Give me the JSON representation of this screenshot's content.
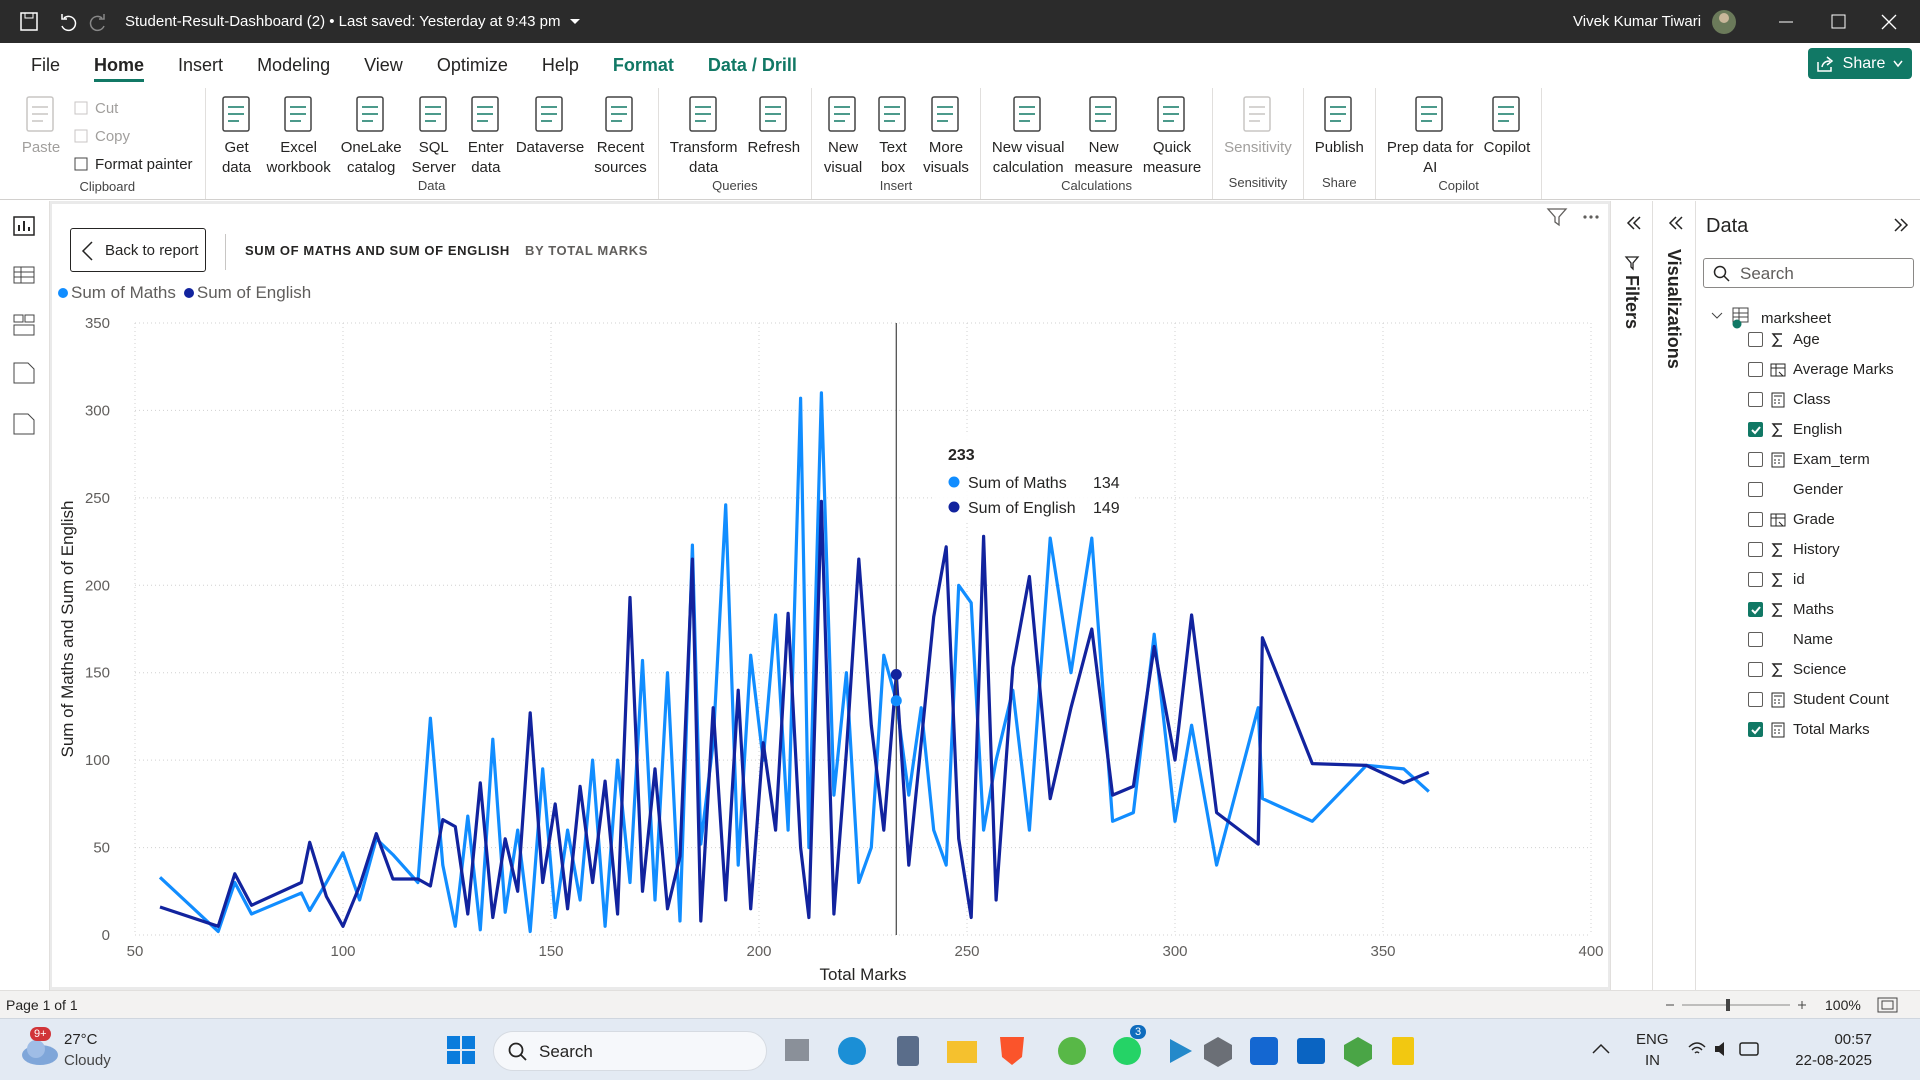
{
  "titlebar": {
    "title": "Student-Result-Dashboard (2) • Last saved: Yesterday at 9:43 pm",
    "user": "Vivek Kumar Tiwari"
  },
  "tabs": [
    {
      "label": "File"
    },
    {
      "label": "Home",
      "active": true
    },
    {
      "label": "Insert"
    },
    {
      "label": "Modeling"
    },
    {
      "label": "View"
    },
    {
      "label": "Optimize"
    },
    {
      "label": "Help"
    },
    {
      "label": "Format",
      "contextual": true
    },
    {
      "label": "Data / Drill",
      "contextual": true
    }
  ],
  "share": "Share",
  "ribbon": [
    {
      "name": "Clipboard",
      "buttons": [
        {
          "label": "Paste",
          "disabled": true
        },
        {
          "label": "Cut",
          "disabled": true,
          "small": true
        },
        {
          "label": "Copy",
          "disabled": true,
          "small": true
        },
        {
          "label": "Format painter",
          "small": true
        }
      ]
    },
    {
      "name": "Data",
      "buttons": [
        {
          "label": "Get\ndata"
        },
        {
          "label": "Excel\nworkbook"
        },
        {
          "label": "OneLake\ncatalog"
        },
        {
          "label": "SQL\nServer"
        },
        {
          "label": "Enter\ndata"
        },
        {
          "label": "Dataverse"
        },
        {
          "label": "Recent\nsources"
        }
      ]
    },
    {
      "name": "Queries",
      "buttons": [
        {
          "label": "Transform\ndata"
        },
        {
          "label": "Refresh"
        }
      ]
    },
    {
      "name": "Insert",
      "buttons": [
        {
          "label": "New\nvisual"
        },
        {
          "label": "Text\nbox"
        },
        {
          "label": "More\nvisuals"
        }
      ]
    },
    {
      "name": "Calculations",
      "buttons": [
        {
          "label": "New visual\ncalculation"
        },
        {
          "label": "New\nmeasure"
        },
        {
          "label": "Quick\nmeasure"
        }
      ]
    },
    {
      "name": "Sensitivity",
      "buttons": [
        {
          "label": "Sensitivity",
          "disabled": true
        }
      ]
    },
    {
      "name": "Share",
      "buttons": [
        {
          "label": "Publish"
        }
      ]
    },
    {
      "name": "Copilot",
      "buttons": [
        {
          "label": "Prep data for\nAI"
        },
        {
          "label": "Copilot"
        }
      ]
    }
  ],
  "visual": {
    "back": "Back to report",
    "heading": "SUM OF MATHS AND SUM OF ENGLISH",
    "subheading": "BY TOTAL MARKS"
  },
  "panes": {
    "filters": "Filters",
    "visualizations": "Visualizations",
    "data": {
      "title": "Data",
      "search": "Search",
      "table": "marksheet",
      "fields": [
        {
          "name": "Age",
          "kind": "sum",
          "checked": false
        },
        {
          "name": "Average Marks",
          "kind": "column-calc",
          "checked": false
        },
        {
          "name": "Class",
          "kind": "calc",
          "checked": false
        },
        {
          "name": "English",
          "kind": "sum",
          "checked": true
        },
        {
          "name": "Exam_term",
          "kind": "calc",
          "checked": false
        },
        {
          "name": "Gender",
          "kind": "text",
          "checked": false
        },
        {
          "name": "Grade",
          "kind": "column-calc",
          "checked": false
        },
        {
          "name": "History",
          "kind": "sum",
          "checked": false
        },
        {
          "name": "id",
          "kind": "sum",
          "checked": false
        },
        {
          "name": "Maths",
          "kind": "sum",
          "checked": true
        },
        {
          "name": "Name",
          "kind": "text",
          "checked": false
        },
        {
          "name": "Science",
          "kind": "sum",
          "checked": false
        },
        {
          "name": "Student Count",
          "kind": "calc",
          "checked": false
        },
        {
          "name": "Total Marks",
          "kind": "calc",
          "checked": true
        }
      ]
    }
  },
  "status": {
    "page": "Page 1 of 1",
    "zoom": "100%"
  },
  "taskbar": {
    "temp": "27°C",
    "condition": "Cloudy",
    "weather_badge": "9+",
    "search": "Search",
    "app_badge": "3",
    "lang": "ENG",
    "region": "IN",
    "time": "00:57",
    "date": "22-08-2025"
  },
  "chart_data": {
    "type": "line",
    "x_label": "Total Marks",
    "y_label": "Sum of Maths and Sum of English",
    "x": [
      56,
      70,
      74,
      78,
      90,
      92,
      96,
      100,
      104,
      108,
      112,
      118,
      121,
      124,
      127,
      130,
      133,
      136,
      139,
      142,
      145,
      148,
      151,
      154,
      157,
      160,
      163,
      166,
      169,
      172,
      175,
      178,
      181,
      184,
      186,
      189,
      192,
      195,
      198,
      201,
      204,
      207,
      210,
      212,
      215,
      218,
      221,
      224,
      227,
      230,
      233,
      236,
      239,
      242,
      245,
      248,
      251,
      254,
      257,
      261,
      265,
      270,
      275,
      280,
      285,
      290,
      295,
      300,
      304,
      310,
      320,
      321,
      333,
      346,
      355,
      361
    ],
    "series": [
      {
        "name": "Sum of Maths",
        "color": "#118dff",
        "values": [
          33,
          2,
          30,
          12,
          24,
          14,
          30,
          47,
          20,
          55,
          46,
          30,
          124,
          40,
          5,
          68,
          3,
          112,
          13,
          60,
          2,
          95,
          10,
          60,
          20,
          100,
          5,
          100,
          30,
          157,
          20,
          150,
          8,
          223,
          52,
          110,
          246,
          40,
          160,
          100,
          183,
          60,
          307,
          50,
          310,
          80,
          150,
          30,
          50,
          160,
          134,
          80,
          130,
          60,
          40,
          200,
          190,
          60,
          100,
          140,
          60,
          227,
          150,
          227,
          65,
          70,
          172,
          65,
          120,
          40,
          130,
          78,
          65,
          97,
          95,
          82
        ]
      },
      {
        "name": "Sum of English",
        "color": "#12239e",
        "values": [
          16,
          5,
          35,
          17,
          30,
          53,
          22,
          5,
          28,
          58,
          32,
          32,
          28,
          66,
          62,
          12,
          87,
          10,
          55,
          25,
          127,
          30,
          75,
          15,
          85,
          30,
          88,
          12,
          193,
          25,
          95,
          15,
          45,
          215,
          8,
          130,
          20,
          140,
          15,
          110,
          60,
          184,
          50,
          10,
          248,
          12,
          105,
          215,
          120,
          60,
          149,
          40,
          110,
          182,
          222,
          55,
          10,
          228,
          20,
          153,
          205,
          78,
          130,
          175,
          80,
          85,
          165,
          100,
          183,
          70,
          52,
          170,
          98,
          97,
          87,
          93
        ]
      }
    ],
    "xlim": [
      50,
      400
    ],
    "xticks": [
      50,
      100,
      150,
      200,
      250,
      300,
      350,
      400
    ],
    "ylim": [
      0,
      350
    ],
    "yticks": [
      0,
      50,
      100,
      150,
      200,
      250,
      300,
      350
    ],
    "grid": true,
    "tooltip": {
      "x": 233
    }
  }
}
